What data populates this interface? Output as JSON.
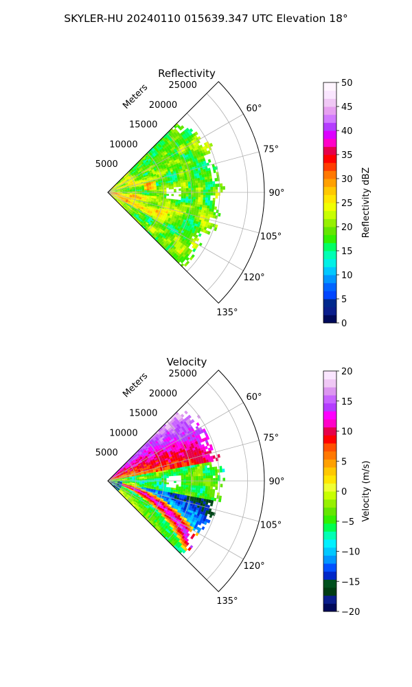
{
  "suptitle": "SKYLER-HU  20240110  015639.347 UTC Elevation 18°",
  "chart_data": [
    {
      "type": "heatmap",
      "projection": "polar-sector",
      "title": "Reflectivity",
      "radial_label": "Meters",
      "radial_ticks": [
        5000,
        10000,
        15000,
        20000,
        25000
      ],
      "radial_tick_labels": [
        "5000",
        "10000",
        "15000",
        "20000",
        "25000"
      ],
      "rlim": [
        0,
        28000
      ],
      "angle_ticks_deg": [
        60,
        75,
        90,
        105,
        120,
        135
      ],
      "angle_tick_labels": [
        "60°",
        "75°",
        "90°",
        "105°",
        "120°",
        "135°"
      ],
      "sector_deg": [
        45,
        135
      ],
      "grid": true,
      "colorbar": {
        "label": "Reflectivity dBZ",
        "vmin": 0,
        "vmax": 50,
        "ticks": [
          0,
          5,
          10,
          15,
          20,
          25,
          30,
          35,
          40,
          45,
          50
        ],
        "tick_labels": [
          "0",
          "5",
          "10",
          "15",
          "20",
          "25",
          "30",
          "35",
          "40",
          "45",
          "50"
        ],
        "colors": [
          "#000a5a",
          "#0a1e8c",
          "#00288c",
          "#0046ff",
          "#0064ff",
          "#0096ff",
          "#00c8ff",
          "#00f0e6",
          "#00ffb4",
          "#00ff64",
          "#32f000",
          "#64e600",
          "#96f000",
          "#c8ff00",
          "#f0ff00",
          "#ffe600",
          "#ffc800",
          "#ffa000",
          "#ff7800",
          "#ff3c00",
          "#ff0000",
          "#e6004b",
          "#ff00c8",
          "#dc00ff",
          "#b43cff",
          "#d27aff",
          "#e6a0f0",
          "#f0c8f5",
          "#fae6ff",
          "#fff5ff"
        ]
      },
      "data_extent_m": 21000
    },
    {
      "type": "heatmap",
      "projection": "polar-sector",
      "title": "Velocity",
      "radial_label": "Meters",
      "radial_ticks": [
        5000,
        10000,
        15000,
        20000,
        25000
      ],
      "radial_tick_labels": [
        "5000",
        "10000",
        "15000",
        "20000",
        "25000"
      ],
      "rlim": [
        0,
        28000
      ],
      "angle_ticks_deg": [
        60,
        75,
        90,
        105,
        120,
        135
      ],
      "angle_tick_labels": [
        "60°",
        "75°",
        "90°",
        "105°",
        "120°",
        "135°"
      ],
      "sector_deg": [
        45,
        135
      ],
      "grid": true,
      "colorbar": {
        "label": "Velocity (m/s)",
        "vmin": -20,
        "vmax": 20,
        "ticks": [
          -20,
          -15,
          -10,
          -5,
          0,
          5,
          10,
          15,
          20
        ],
        "tick_labels": [
          "−20",
          "−15",
          "−10",
          "−5",
          "0",
          "5",
          "10",
          "15",
          "20"
        ],
        "colors": [
          "#000a5a",
          "#0a1e8c",
          "#003c14",
          "#00501e",
          "#0028c8",
          "#0050ff",
          "#0096ff",
          "#00c8ff",
          "#00f0ff",
          "#00ffb4",
          "#00ff50",
          "#32f000",
          "#64e600",
          "#96f000",
          "#c8ff00",
          "#f0ff32",
          "#ffe600",
          "#ffc800",
          "#ffa000",
          "#ff7800",
          "#ff5000",
          "#ff0000",
          "#e6004b",
          "#ff00c8",
          "#ff00ff",
          "#b43cff",
          "#c864ff",
          "#dc96f0",
          "#f0c8f5",
          "#fae6ff"
        ]
      },
      "data_extent_m": 21000
    }
  ]
}
